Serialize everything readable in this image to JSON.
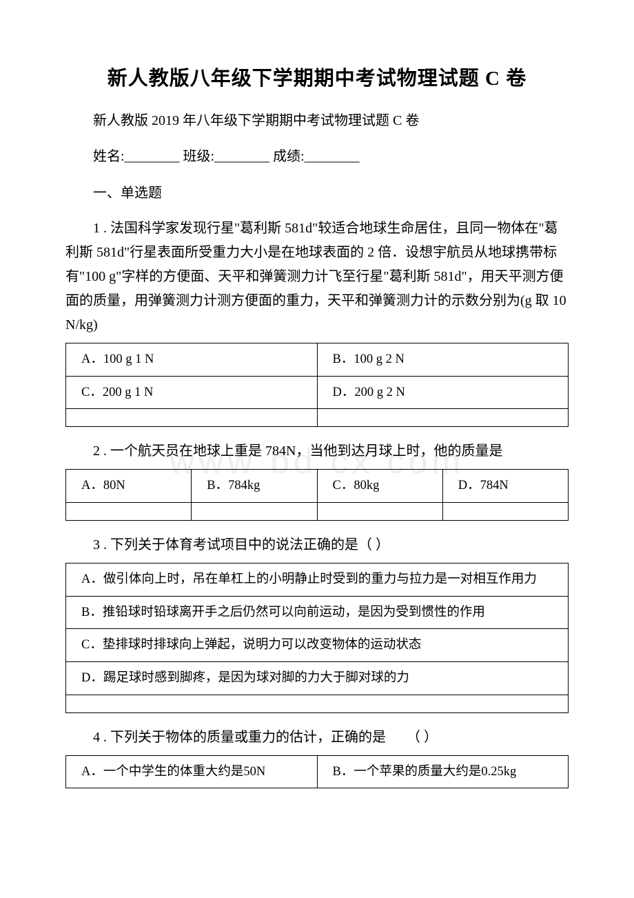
{
  "title": "新人教版八年级下学期期中考试物理试题 C 卷",
  "subtitle": "新人教版 2019 年八年级下学期期中考试物理试题 C 卷",
  "fill": "姓名:________ 班级:________ 成绩:________",
  "section": "一、单选题",
  "watermark": "www  bd  cx  com",
  "q1": {
    "text": "1 . 法国科学家发现行星\"葛利斯 581d\"较适合地球生命居住，且同一物体在\"葛利斯 581d\"行星表面所受重力大小是在地球表面的 2 倍．设想宇航员从地球携带标有\"100 g\"字样的方便面、天平和弹簧测力计飞至行星\"葛利斯 581d\"，用天平测方便面的质量，用弹簧测力计测方便面的重力，天平和弹簧测力计的示数分别为(g 取 10 N/kg)",
    "a": "A．100 g 1 N",
    "b": "B．100 g 2 N",
    "c": "C．200 g 1 N",
    "d": "D．200 g 2 N"
  },
  "q2": {
    "text": "2 . 一个航天员在地球上重是 784N，当他到达月球上时，他的质量是",
    "a": "A．80N",
    "b": "B．784kg",
    "c": "C．80kg",
    "d": "D．784N"
  },
  "q3": {
    "text": "3 . 下列关于体育考试项目中的说法正确的是（ ）",
    "a": "A．做引体向上时，吊在单杠上的小明静止时受到的重力与拉力是一对相互作用力",
    "b": "B．推铅球时铅球离开手之后仍然可以向前运动，是因为受到惯性的作用",
    "c": "C．垫排球时排球向上弹起，说明力可以改变物体的运动状态",
    "d": "D．踢足球时感到脚疼，是因为球对脚的力大于脚对球的力"
  },
  "q4": {
    "text": "4 . 下列关于物体的质量或重力的估计，正确的是　　（ ）",
    "a": "A．一个中学生的体重大约是50N",
    "b": "B．一个苹果的质量大约是0.25kg"
  }
}
